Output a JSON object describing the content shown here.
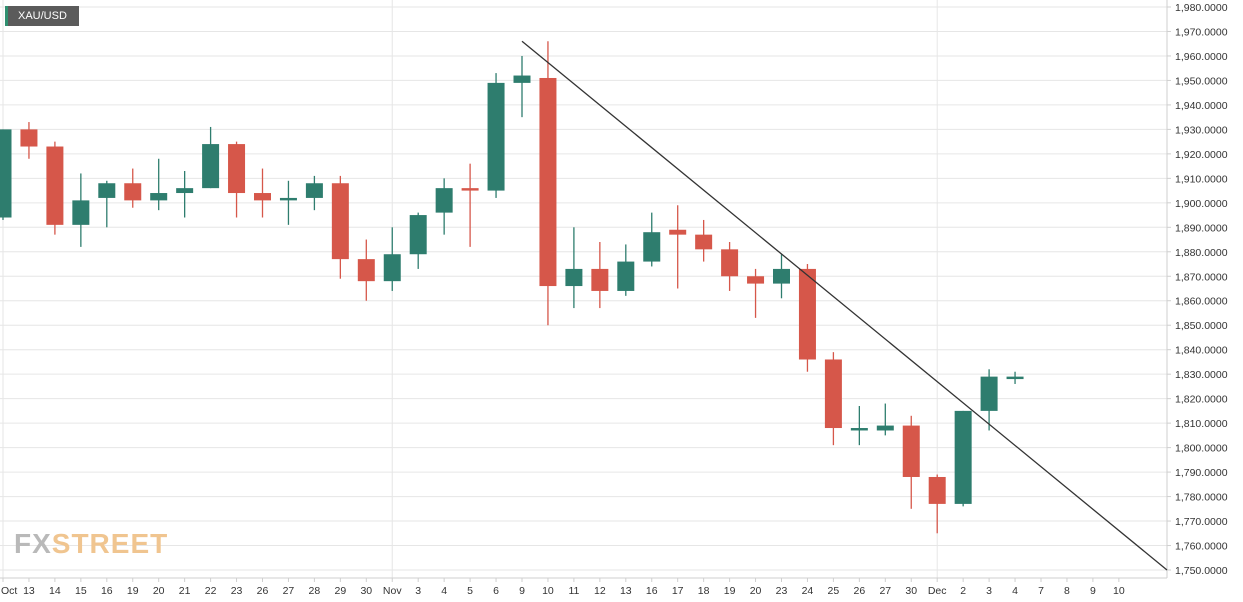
{
  "header": {
    "symbol": "XAU/USD"
  },
  "watermark": {
    "logo_part1": "FX",
    "logo_part2": "STREET"
  },
  "colors": {
    "up": "#2e7d6e",
    "down": "#d6574a",
    "trendline": "#333333"
  },
  "chart_data": {
    "type": "candlestick",
    "title": "",
    "ylim": [
      1748,
      1983
    ],
    "y_ticks": [
      "1,750.0000",
      "1,760.0000",
      "1,770.0000",
      "1,780.0000",
      "1,790.0000",
      "1,800.0000",
      "1,810.0000",
      "1,820.0000",
      "1,830.0000",
      "1,840.0000",
      "1,850.0000",
      "1,860.0000",
      "1,870.0000",
      "1,880.0000",
      "1,890.0000",
      "1,900.0000",
      "1,910.0000",
      "1,920.0000",
      "1,930.0000",
      "1,940.0000",
      "1,950.0000",
      "1,960.0000",
      "1,970.0000",
      "1,980.0000"
    ],
    "x_labels": [
      "Oct",
      "13",
      "14",
      "15",
      "16",
      "19",
      "20",
      "21",
      "22",
      "23",
      "26",
      "27",
      "28",
      "29",
      "30",
      "Nov",
      "3",
      "4",
      "5",
      "6",
      "9",
      "10",
      "11",
      "12",
      "13",
      "16",
      "17",
      "18",
      "19",
      "20",
      "23",
      "24",
      "25",
      "26",
      "27",
      "30",
      "Dec",
      "2",
      "3",
      "4",
      "7",
      "8",
      "9",
      "10"
    ],
    "candles": [
      {
        "date": "Oct 12",
        "open": 1894,
        "high": 1930,
        "low": 1893,
        "close": 1930
      },
      {
        "date": "Oct 13",
        "open": 1930,
        "high": 1933,
        "low": 1918,
        "close": 1923
      },
      {
        "date": "Oct 14",
        "open": 1923,
        "high": 1925,
        "low": 1887,
        "close": 1891
      },
      {
        "date": "Oct 15",
        "open": 1891,
        "high": 1912,
        "low": 1882,
        "close": 1901
      },
      {
        "date": "Oct 16",
        "open": 1902,
        "high": 1909,
        "low": 1890,
        "close": 1908
      },
      {
        "date": "Oct 19",
        "open": 1908,
        "high": 1914,
        "low": 1898,
        "close": 1901
      },
      {
        "date": "Oct 20",
        "open": 1901,
        "high": 1918,
        "low": 1897,
        "close": 1904
      },
      {
        "date": "Oct 21",
        "open": 1904,
        "high": 1913,
        "low": 1894,
        "close": 1906
      },
      {
        "date": "Oct 22",
        "open": 1906,
        "high": 1931,
        "low": 1906,
        "close": 1924
      },
      {
        "date": "Oct 23",
        "open": 1924,
        "high": 1925,
        "low": 1894,
        "close": 1904
      },
      {
        "date": "Oct 26",
        "open": 1904,
        "high": 1914,
        "low": 1894,
        "close": 1901
      },
      {
        "date": "Oct 27",
        "open": 1901,
        "high": 1909,
        "low": 1891,
        "close": 1902
      },
      {
        "date": "Oct 28",
        "open": 1902,
        "high": 1911,
        "low": 1897,
        "close": 1908
      },
      {
        "date": "Oct 29",
        "open": 1908,
        "high": 1911,
        "low": 1869,
        "close": 1877
      },
      {
        "date": "Oct 30",
        "open": 1877,
        "high": 1885,
        "low": 1860,
        "close": 1868
      },
      {
        "date": "Nov 2",
        "open": 1868,
        "high": 1890,
        "low": 1864,
        "close": 1879
      },
      {
        "date": "Nov 3",
        "open": 1879,
        "high": 1896,
        "low": 1873,
        "close": 1895
      },
      {
        "date": "Nov 4",
        "open": 1896,
        "high": 1910,
        "low": 1887,
        "close": 1906
      },
      {
        "date": "Nov 5",
        "open": 1906,
        "high": 1916,
        "low": 1882,
        "close": 1905
      },
      {
        "date": "Nov 6",
        "open": 1905,
        "high": 1953,
        "low": 1902,
        "close": 1949
      },
      {
        "date": "Nov 9",
        "open": 1949,
        "high": 1960,
        "low": 1935,
        "close": 1952
      },
      {
        "date": "Nov 10",
        "open": 1951,
        "high": 1966,
        "low": 1850,
        "close": 1866
      },
      {
        "date": "Nov 11",
        "open": 1866,
        "high": 1890,
        "low": 1857,
        "close": 1873
      },
      {
        "date": "Nov 12",
        "open": 1873,
        "high": 1884,
        "low": 1857,
        "close": 1864
      },
      {
        "date": "Nov 13",
        "open": 1864,
        "high": 1883,
        "low": 1862,
        "close": 1876
      },
      {
        "date": "Nov 16",
        "open": 1876,
        "high": 1896,
        "low": 1874,
        "close": 1888
      },
      {
        "date": "Nov 17",
        "open": 1889,
        "high": 1899,
        "low": 1865,
        "close": 1887
      },
      {
        "date": "Nov 18",
        "open": 1887,
        "high": 1893,
        "low": 1876,
        "close": 1881
      },
      {
        "date": "Nov 19",
        "open": 1881,
        "high": 1884,
        "low": 1864,
        "close": 1870
      },
      {
        "date": "Nov 20",
        "open": 1870,
        "high": 1873,
        "low": 1853,
        "close": 1867
      },
      {
        "date": "Nov 23",
        "open": 1867,
        "high": 1879,
        "low": 1861,
        "close": 1873
      },
      {
        "date": "Nov 24",
        "open": 1873,
        "high": 1875,
        "low": 1831,
        "close": 1836
      },
      {
        "date": "Nov 25",
        "open": 1836,
        "high": 1839,
        "low": 1801,
        "close": 1808
      },
      {
        "date": "Nov 26",
        "open": 1807,
        "high": 1817,
        "low": 1801,
        "close": 1808
      },
      {
        "date": "Nov 27",
        "open": 1807,
        "high": 1818,
        "low": 1805,
        "close": 1809
      },
      {
        "date": "Nov 30",
        "open": 1809,
        "high": 1813,
        "low": 1775,
        "close": 1788
      },
      {
        "date": "Dec 1",
        "open": 1788,
        "high": 1789,
        "low": 1765,
        "close": 1777
      },
      {
        "date": "Dec 2",
        "open": 1777,
        "high": 1815,
        "low": 1776,
        "close": 1815
      },
      {
        "date": "Dec 3",
        "open": 1815,
        "high": 1832,
        "low": 1807,
        "close": 1829
      },
      {
        "date": "Dec 4",
        "open": 1828,
        "high": 1831,
        "low": 1826,
        "close": 1829
      }
    ],
    "trendline": {
      "start": {
        "date": "Nov 9",
        "value": 1966
      },
      "end_value": 1750
    },
    "grid": true,
    "legend": "none"
  }
}
